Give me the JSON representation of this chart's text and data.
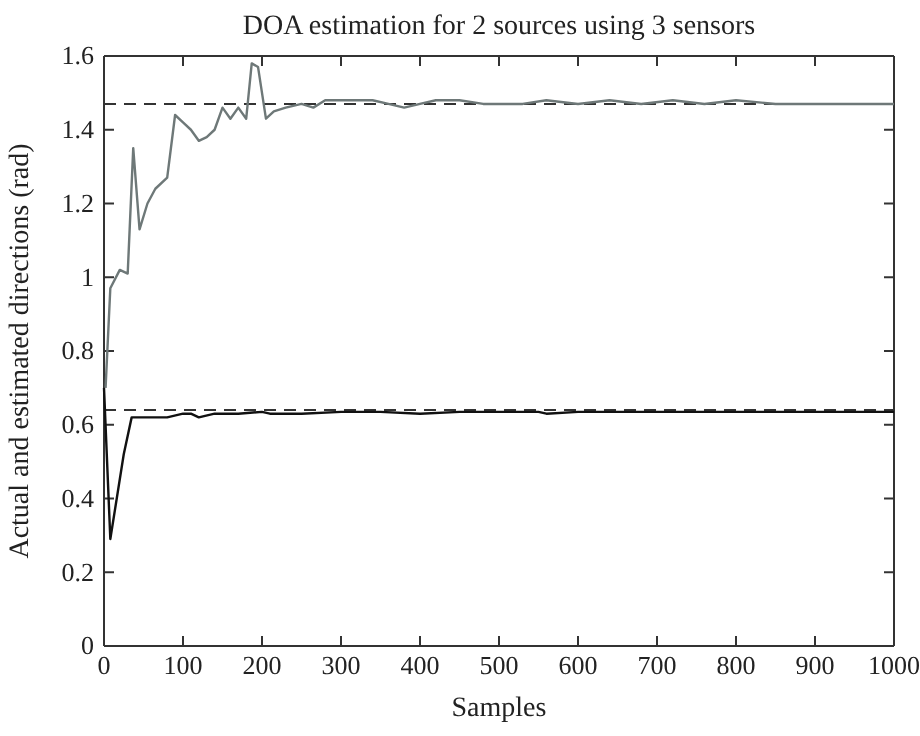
{
  "chart_data": {
    "type": "line",
    "title": "DOA estimation for 2 sources using 3 sensors",
    "xlabel": "Samples",
    "ylabel": "Actual and estimated directions (rad)",
    "xlim": [
      0,
      1000
    ],
    "ylim": [
      0,
      1.6
    ],
    "xticks": [
      0,
      100,
      200,
      300,
      400,
      500,
      600,
      700,
      800,
      900,
      1000
    ],
    "yticks": [
      0,
      0.2,
      0.4,
      0.6,
      0.8,
      1,
      1.2,
      1.4,
      1.6
    ],
    "grid": false,
    "marker": "none",
    "series": [
      {
        "color": "#6e7878",
        "line_style": "solid",
        "x": [
          2,
          8,
          20,
          30,
          37,
          45,
          55,
          65,
          80,
          90,
          100,
          110,
          120,
          130,
          140,
          150,
          160,
          170,
          180,
          187,
          195,
          205,
          215,
          230,
          250,
          265,
          280,
          290,
          310,
          340,
          360,
          380,
          400,
          420,
          450,
          480,
          500,
          530,
          560,
          600,
          640,
          680,
          720,
          760,
          800,
          850,
          900,
          950,
          1000
        ],
        "values": [
          0.7,
          0.97,
          1.02,
          1.01,
          1.35,
          1.13,
          1.2,
          1.24,
          1.27,
          1.44,
          1.42,
          1.4,
          1.37,
          1.38,
          1.4,
          1.46,
          1.43,
          1.46,
          1.43,
          1.58,
          1.57,
          1.43,
          1.45,
          1.46,
          1.47,
          1.46,
          1.48,
          1.48,
          1.48,
          1.48,
          1.47,
          1.46,
          1.47,
          1.48,
          1.48,
          1.47,
          1.47,
          1.47,
          1.48,
          1.47,
          1.48,
          1.47,
          1.48,
          1.47,
          1.48,
          1.47,
          1.47,
          1.47,
          1.47
        ]
      },
      {
        "color": "#111111",
        "line_style": "solid",
        "x": [
          0,
          8,
          25,
          35,
          50,
          80,
          100,
          110,
          120,
          140,
          170,
          200,
          210,
          250,
          300,
          350,
          400,
          450,
          500,
          550,
          560,
          600,
          700,
          800,
          900,
          1000
        ],
        "values": [
          0.7,
          0.29,
          0.52,
          0.62,
          0.62,
          0.62,
          0.63,
          0.63,
          0.62,
          0.63,
          0.63,
          0.635,
          0.63,
          0.63,
          0.635,
          0.635,
          0.63,
          0.635,
          0.635,
          0.635,
          0.63,
          0.635,
          0.635,
          0.635,
          0.635,
          0.635
        ]
      }
    ],
    "ref_lines": [
      {
        "axis": "y",
        "value": 1.47,
        "color": "#333333",
        "line_style": "dashed"
      },
      {
        "axis": "y",
        "value": 0.64,
        "color": "#333333",
        "line_style": "dashed"
      }
    ]
  }
}
